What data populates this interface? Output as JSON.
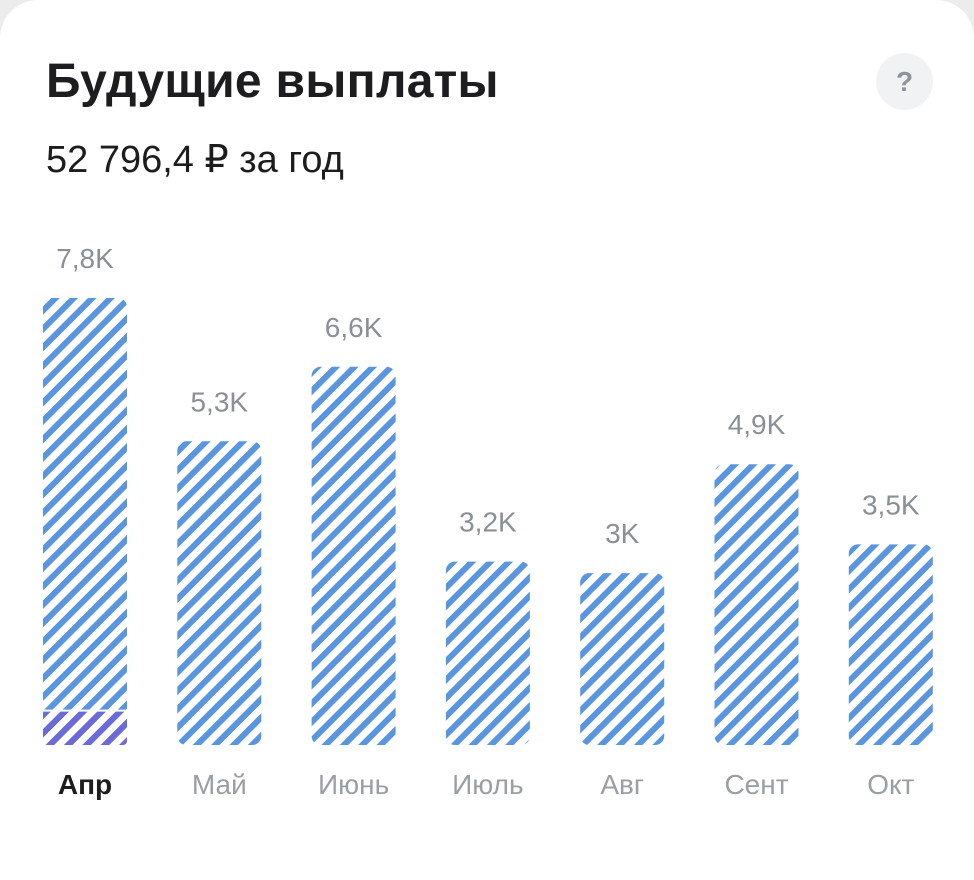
{
  "header": {
    "title": "Будущие выплаты",
    "subtitle": "52 796,4 ₽ за год",
    "help_label": "?",
    "help_icon": "question-icon"
  },
  "colors": {
    "stripe": "#5a96e0",
    "stripe_active": "#6b6ad8",
    "background": "#ffffff"
  },
  "chart_data": {
    "type": "bar",
    "categories": [
      "Апр",
      "Май",
      "Июнь",
      "Июль",
      "Авг",
      "Сент",
      "Окт"
    ],
    "values": [
      7.8,
      5.3,
      6.6,
      3.2,
      3.0,
      4.9,
      3.5
    ],
    "labels": [
      "7,8K",
      "5,3K",
      "6,6K",
      "3,2K",
      "3K",
      "4,9K",
      "3,5K"
    ],
    "highlighted_segment": {
      "category": "Апр",
      "value": 0.6
    },
    "selected_category": "Апр",
    "unit": "K ₽",
    "ylim": [
      0,
      7.8
    ],
    "grid": false,
    "legend": "none"
  }
}
